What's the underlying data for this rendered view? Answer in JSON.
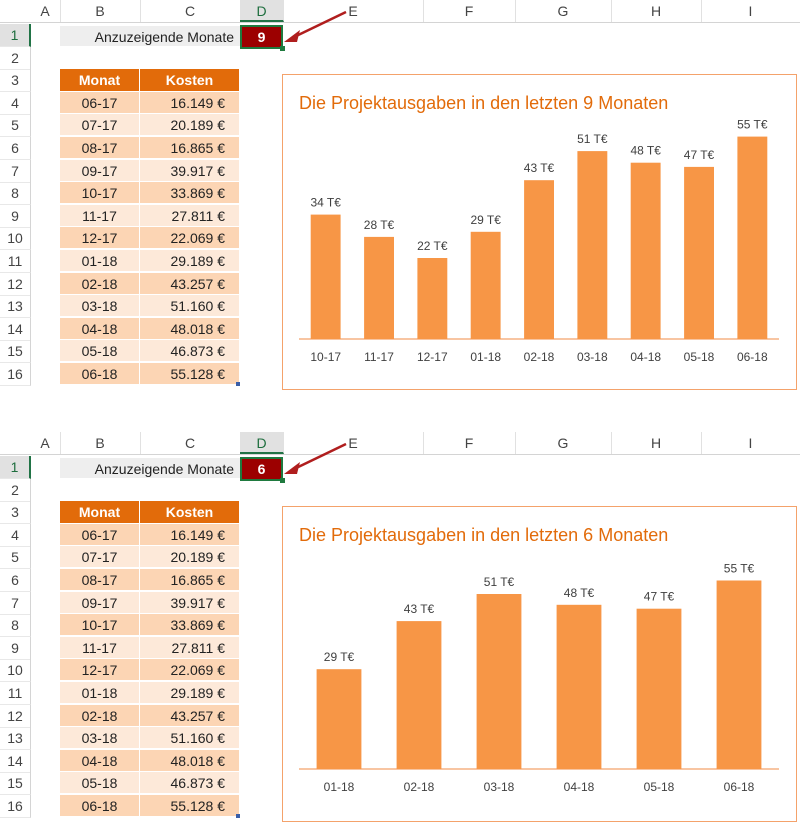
{
  "columns": [
    "A",
    "B",
    "C",
    "D",
    "E",
    "F",
    "G",
    "H",
    "I"
  ],
  "rows": [
    "1",
    "2",
    "3",
    "4",
    "5",
    "6",
    "7",
    "8",
    "9",
    "10",
    "11",
    "12",
    "13",
    "14",
    "15",
    "16"
  ],
  "table": {
    "headers": {
      "month": "Monat",
      "cost": "Kosten"
    },
    "rows": [
      {
        "month": "06-17",
        "cost": "16.149 €"
      },
      {
        "month": "07-17",
        "cost": "20.189 €"
      },
      {
        "month": "08-17",
        "cost": "16.865 €"
      },
      {
        "month": "09-17",
        "cost": "39.917 €"
      },
      {
        "month": "10-17",
        "cost": "33.869 €"
      },
      {
        "month": "11-17",
        "cost": "27.811 €"
      },
      {
        "month": "12-17",
        "cost": "22.069 €"
      },
      {
        "month": "01-18",
        "cost": "29.189 €"
      },
      {
        "month": "02-18",
        "cost": "43.257 €"
      },
      {
        "month": "03-18",
        "cost": "51.160 €"
      },
      {
        "month": "04-18",
        "cost": "48.018 €"
      },
      {
        "month": "05-18",
        "cost": "46.873 €"
      },
      {
        "month": "06-18",
        "cost": "55.128 €"
      }
    ]
  },
  "colors": {
    "header_orange": "#e26b0a",
    "bar_orange": "#f79646",
    "input_red": "#9c0000"
  },
  "panels": [
    {
      "label": "Anzuzeigende Monate",
      "input_value": "9",
      "chart_title": "Die Projektausgaben in den letzten 9 Monaten"
    },
    {
      "label": "Anzuzeigende Monate",
      "input_value": "6",
      "chart_title": "Die Projektausgaben in den letzten 6 Monaten"
    }
  ],
  "chart_data": [
    {
      "type": "bar",
      "title": "Die Projektausgaben in den letzten 9 Monaten",
      "categories": [
        "10-17",
        "11-17",
        "12-17",
        "01-18",
        "02-18",
        "03-18",
        "04-18",
        "05-18",
        "06-18"
      ],
      "values": [
        33.869,
        27.811,
        22.069,
        29.189,
        43.257,
        51.16,
        48.018,
        46.873,
        55.128
      ],
      "data_labels": [
        "34 T€",
        "28 T€",
        "22 T€",
        "29 T€",
        "43 T€",
        "51 T€",
        "48 T€",
        "47 T€",
        "55 T€"
      ],
      "ylim": [
        0,
        60
      ],
      "grid": false,
      "legend": "none"
    },
    {
      "type": "bar",
      "title": "Die Projektausgaben in den letzten 6 Monaten",
      "categories": [
        "01-18",
        "02-18",
        "03-18",
        "04-18",
        "05-18",
        "06-18"
      ],
      "values": [
        29.189,
        43.257,
        51.16,
        48.018,
        46.873,
        55.128
      ],
      "data_labels": [
        "29 T€",
        "43 T€",
        "51 T€",
        "48 T€",
        "47 T€",
        "55 T€"
      ],
      "ylim": [
        0,
        60
      ],
      "grid": false,
      "legend": "none"
    }
  ]
}
